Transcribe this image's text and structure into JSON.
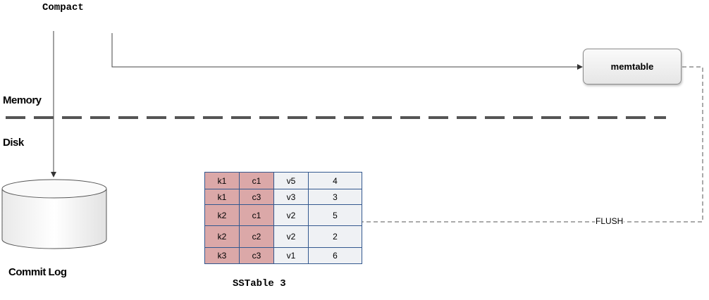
{
  "compact_label": "Compact",
  "memory_label": "Memory",
  "disk_label": "Disk",
  "memtable_label": "memtable",
  "commit_log_label": "Commit Log",
  "flush_label": "FLUSH",
  "sstable": {
    "title": "SSTable 3",
    "rows": [
      [
        "k1",
        "c1",
        "v5",
        "4"
      ],
      [
        "k1",
        "c3",
        "v3",
        "3"
      ],
      [
        "k2",
        "c1",
        "v2",
        "5"
      ],
      [
        "k2",
        "c2",
        "v2",
        "2"
      ],
      [
        "k3",
        "c3",
        "v1",
        "6"
      ]
    ]
  },
  "colors": {
    "key_cell": "#dba8a8",
    "value_cell": "#eff1f4",
    "table_border": "#33588f",
    "divider": "#555555"
  }
}
